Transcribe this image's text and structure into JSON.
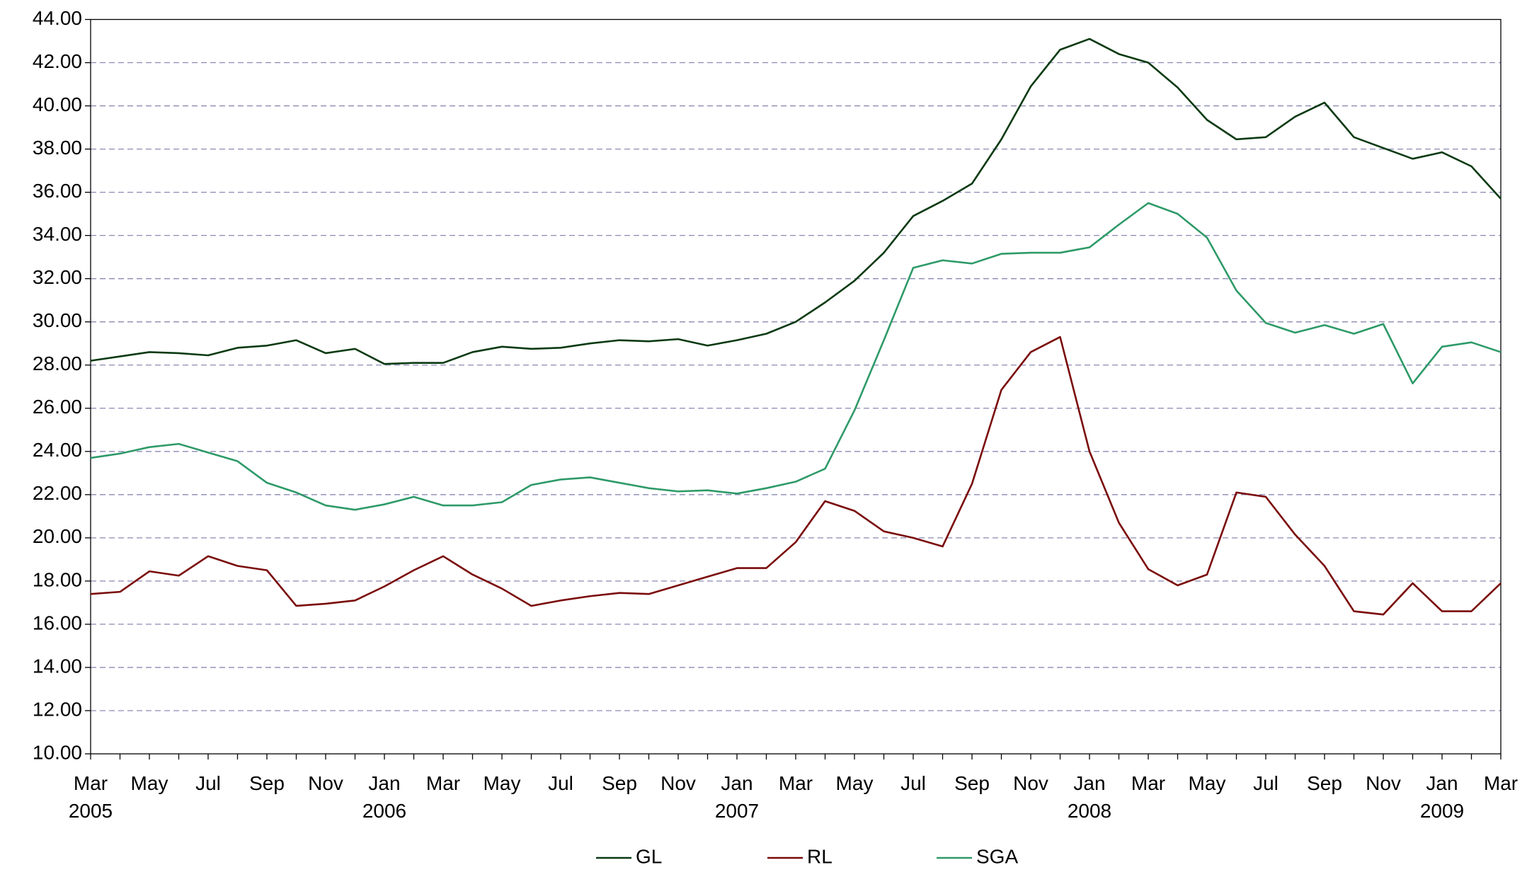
{
  "chart_data": {
    "type": "line",
    "categories": [
      "Mar 2005",
      null,
      "May",
      null,
      "Jul",
      null,
      "Sep",
      null,
      "Nov",
      null,
      "Jan 2006",
      null,
      "Mar",
      null,
      "May",
      null,
      "Jul",
      null,
      "Sep",
      null,
      "Nov",
      null,
      "Jan 2007",
      null,
      "Mar",
      null,
      "May",
      null,
      "Jul",
      null,
      "Sep",
      null,
      "Nov",
      null,
      "Jan 2008",
      null,
      "Mar",
      null,
      "May",
      null,
      "Jul",
      null,
      "Sep",
      null,
      "Nov",
      null,
      "Jan 2009",
      null,
      "Mar"
    ],
    "series": [
      {
        "name": "GL",
        "color": "#0a3a12",
        "values": [
          28.2,
          28.4,
          28.6,
          28.55,
          28.45,
          28.8,
          28.9,
          29.15,
          28.55,
          28.75,
          28.05,
          28.1,
          28.1,
          28.6,
          28.85,
          28.75,
          28.8,
          29.0,
          29.15,
          29.1,
          29.2,
          28.9,
          29.15,
          29.45,
          30.0,
          30.9,
          31.9,
          33.2,
          34.9,
          35.6,
          36.4,
          38.45,
          40.9,
          42.6,
          43.1,
          42.4,
          42.0,
          40.85,
          39.35,
          38.45,
          38.55,
          39.5,
          40.15,
          38.55,
          38.05,
          37.55,
          37.85,
          37.2,
          35.7
        ]
      },
      {
        "name": "RL",
        "color": "#7a0a0a",
        "values": [
          17.4,
          17.5,
          18.45,
          18.25,
          19.15,
          18.7,
          18.5,
          16.85,
          16.95,
          17.1,
          17.75,
          18.5,
          19.15,
          18.3,
          17.65,
          16.85,
          17.1,
          17.3,
          17.45,
          17.4,
          17.8,
          18.2,
          18.6,
          18.6,
          19.8,
          21.7,
          21.25,
          20.3,
          20.0,
          19.6,
          22.5,
          26.85,
          28.6,
          29.3,
          24.0,
          20.7,
          18.55,
          17.8,
          18.3,
          22.1,
          21.9,
          20.15,
          18.7,
          16.6,
          16.45,
          17.9,
          16.6,
          16.6,
          17.9
        ]
      },
      {
        "name": "SGA",
        "color": "#2e9a68",
        "values": [
          23.7,
          23.9,
          24.2,
          24.35,
          23.95,
          23.55,
          22.55,
          22.1,
          21.5,
          21.3,
          21.55,
          21.9,
          21.5,
          21.5,
          21.65,
          22.45,
          22.7,
          22.8,
          22.55,
          22.3,
          22.15,
          22.2,
          22.05,
          22.3,
          22.6,
          23.2,
          25.9,
          29.15,
          32.5,
          32.85,
          32.7,
          33.15,
          33.2,
          33.2,
          33.45,
          34.5,
          35.5,
          35.0,
          33.9,
          31.45,
          29.95,
          29.5,
          29.85,
          29.45,
          29.9,
          27.15,
          28.85,
          29.05,
          28.6
        ]
      }
    ],
    "ylim": [
      10,
      44
    ],
    "yticks": [
      {
        "value": 10,
        "label": "10.00"
      },
      {
        "value": 12,
        "label": "12.00"
      },
      {
        "value": 14,
        "label": "14.00"
      },
      {
        "value": 16,
        "label": "16.00"
      },
      {
        "value": 18,
        "label": "18.00"
      },
      {
        "value": 20,
        "label": "20.00"
      },
      {
        "value": 22,
        "label": "22.00"
      },
      {
        "value": 24,
        "label": "24.00"
      },
      {
        "value": 26,
        "label": "26.00"
      },
      {
        "value": 28,
        "label": "28.00"
      },
      {
        "value": 30,
        "label": "30.00"
      },
      {
        "value": 32,
        "label": "32.00"
      },
      {
        "value": 34,
        "label": "34.00"
      },
      {
        "value": 36,
        "label": "36.00"
      },
      {
        "value": 38,
        "label": "38.00"
      },
      {
        "value": 40,
        "label": "40.00"
      },
      {
        "value": 42,
        "label": "42.00"
      },
      {
        "value": 44,
        "label": "44.00"
      }
    ],
    "grid": true,
    "legend": "bottom"
  }
}
